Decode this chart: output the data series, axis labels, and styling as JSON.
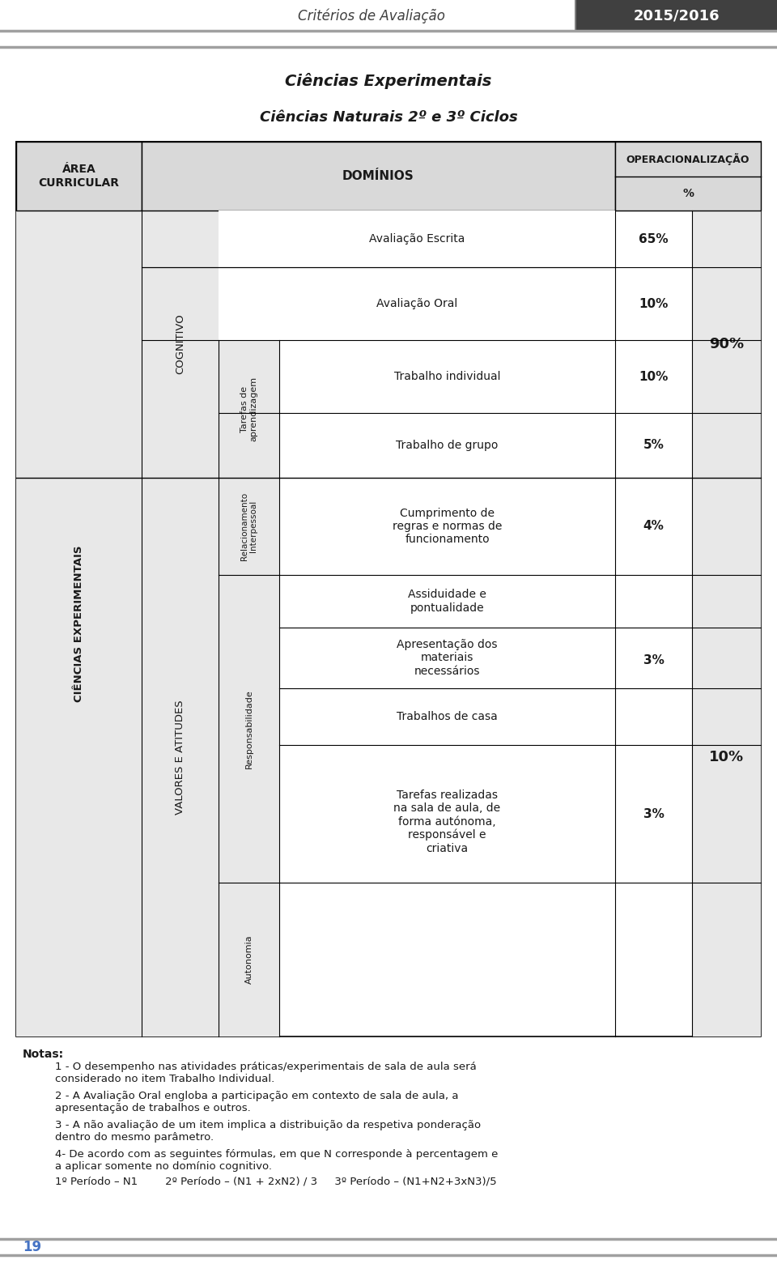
{
  "page_title": "Critérios de Avaliação",
  "page_year": "2015/2016",
  "subtitle1": "Ciências Experimentais",
  "subtitle2": "Ciências Naturais 2º e 3º Ciclos",
  "header_col1": "ÁREA\nCURRICULAR",
  "header_col2": "DOMÍNIOS",
  "area_label": "CIÊNCIAS EXPERIMENTAIS",
  "col2a_label": "COGNITIVO",
  "col2b_label": "VALORES E ATITUDES",
  "col3a_label": "Tarefas de\naprendizagem",
  "col3b_label": "Relacionamento\nInterpessoal",
  "col3c_label": "Responsabilidade",
  "col3d_label": "Autonomia",
  "row1_text": "Avaliação Escrita",
  "row1_pct": "65%",
  "row2_text": "Avaliação Oral",
  "row2_pct": "10%",
  "row3_text": "Trabalho individual",
  "row3_pct": "10%",
  "row4_text": "Trabalho de grupo",
  "row4_pct": "5%",
  "row5_text": "Cumprimento de\nregras e normas de\nfuncionamento",
  "row5_pct": "4%",
  "row6_text": "Assiduidade e\npontualidade",
  "row7_text": "Apresentação dos\nmateriais\nnecessários",
  "row7_pct": "3%",
  "row8_text": "Trabalhos de casa",
  "row9_text": "Tarefas realizadas\nna sala de aula, de\nforma autónoma,\nresponsável e\ncriativa",
  "row9_pct": "3%",
  "pct_90": "90%",
  "pct_10": "10%",
  "notes_title": "Notas:",
  "note1": "1 - O desempenho nas atividades práticas/experimentais de sala de aula será\nconsiderado no item Trabalho Individual.",
  "note2": "2 - A Avaliação Oral engloba a participação em contexto de sala de aula, a\napresentação de trabalhos e outros.",
  "note3": "3 - A não avaliação de um item implica a distribuição da respetiva ponderação\ndentro do mesmo parâmetro.",
  "note4": "4- De acordo com as seguintes fórmulas, em que N corresponde à percentagem e\na aplicar somente no domínio cognitivo.",
  "note5": "1º Período – N1        2º Período – (N1 + 2xN2) / 3     3º Período – (N1+N2+3xN3)/5",
  "page_num": "19",
  "header_bg": "#d9d9d9",
  "page_num_color": "#4472c4"
}
